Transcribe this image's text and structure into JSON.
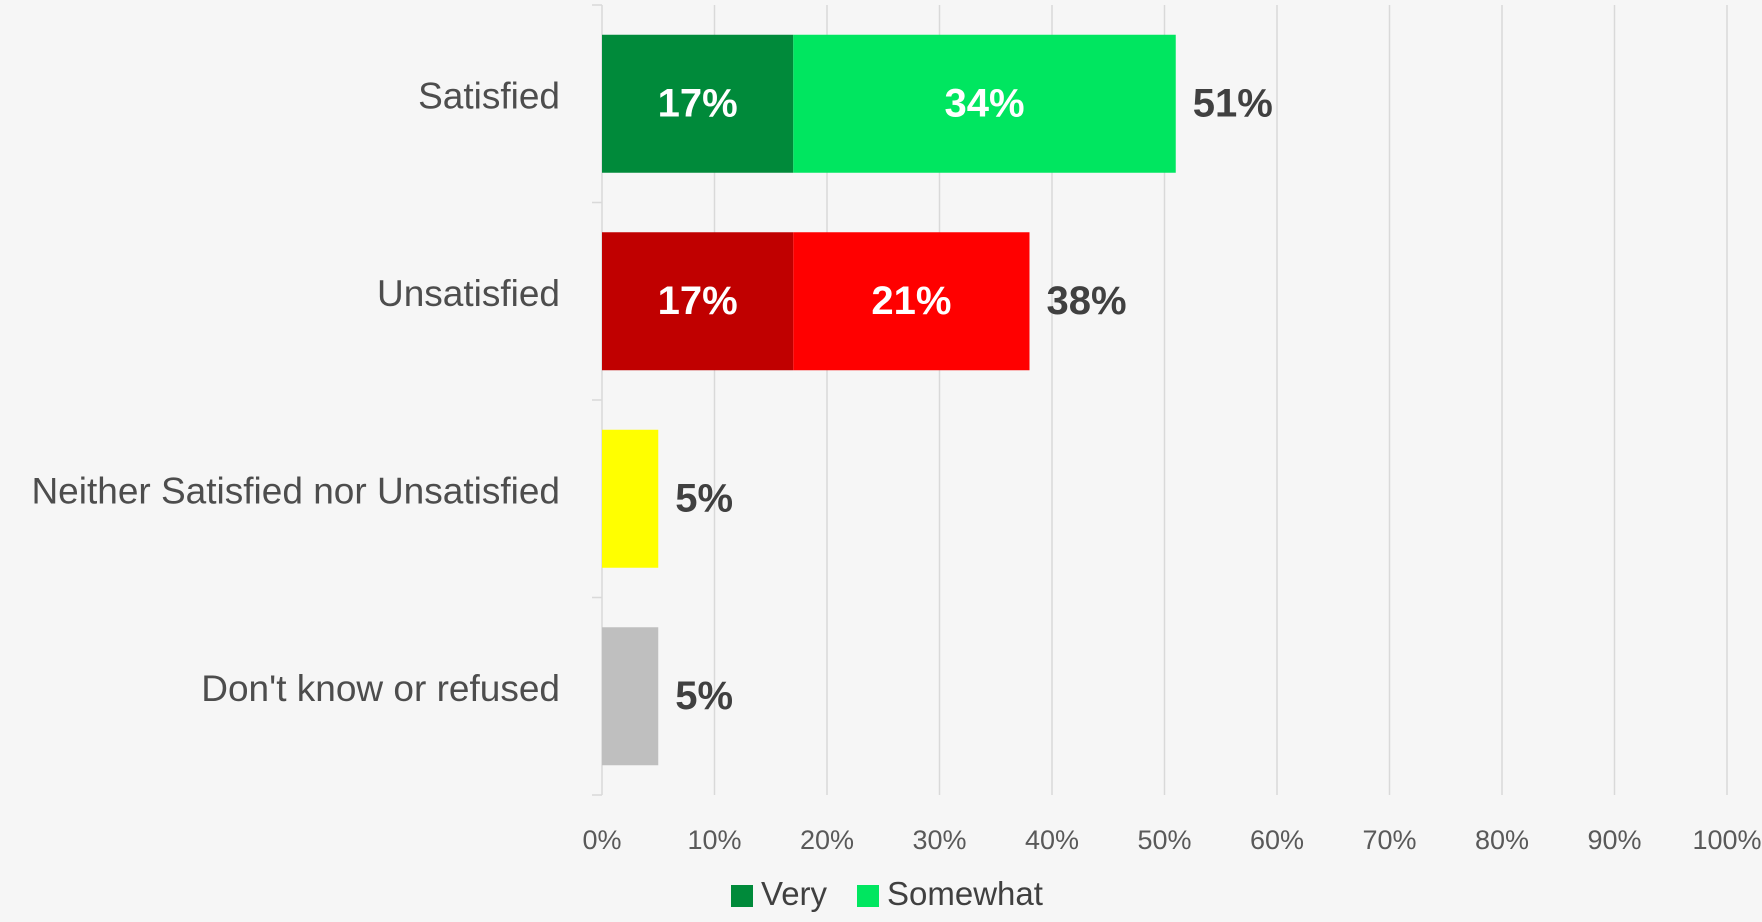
{
  "chart_data": {
    "type": "bar",
    "orientation": "horizontal",
    "stacked": true,
    "categories": [
      "Satisfied",
      "Unsatisfied",
      "Neither Satisfied nor Unsatisfied",
      "Don't know or refused"
    ],
    "bars": [
      {
        "category": "Satisfied",
        "segments": [
          {
            "series": "Very",
            "value": 17,
            "label": "17%",
            "color": "#008a3a"
          },
          {
            "series": "Somewhat",
            "value": 34,
            "label": "34%",
            "color": "#00e660"
          }
        ],
        "total": 51,
        "total_label": "51%"
      },
      {
        "category": "Unsatisfied",
        "segments": [
          {
            "series": "Very",
            "value": 17,
            "label": "17%",
            "color": "#c00000"
          },
          {
            "series": "Somewhat",
            "value": 21,
            "label": "21%",
            "color": "#ff0000"
          }
        ],
        "total": 38,
        "total_label": "38%"
      },
      {
        "category": "Neither Satisfied nor Unsatisfied",
        "segments": [
          {
            "series": "",
            "value": 5,
            "label": "",
            "color": "#ffff00"
          }
        ],
        "total": 5,
        "total_label": "5%"
      },
      {
        "category": "Don't know or refused",
        "segments": [
          {
            "series": "",
            "value": 5,
            "label": "",
            "color": "#bfbfbf"
          }
        ],
        "total": 5,
        "total_label": "5%"
      }
    ],
    "xlim": [
      0,
      100
    ],
    "x_ticks": [
      "0%",
      "10%",
      "20%",
      "30%",
      "40%",
      "50%",
      "60%",
      "70%",
      "80%",
      "90%",
      "100%"
    ],
    "legend": {
      "placement": "bottom",
      "entries": [
        {
          "label": "Very",
          "color": "#008a3a"
        },
        {
          "label": "Somewhat",
          "color": "#00e660"
        }
      ]
    },
    "grid": "vertical",
    "title": "",
    "xlabel": "",
    "ylabel": ""
  }
}
